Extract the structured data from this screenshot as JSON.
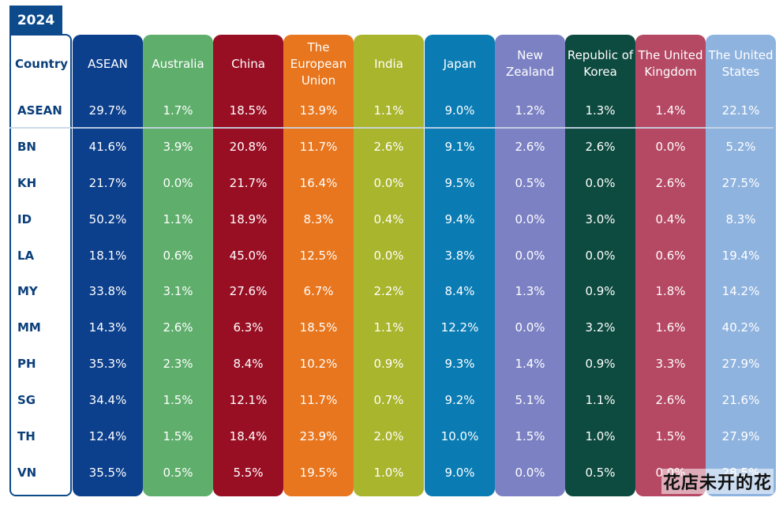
{
  "year": "2024",
  "country_header": "Country",
  "watermark": "花店未开的花",
  "colors": [
    "#0c3f8c",
    "#5fae6c",
    "#980f24",
    "#e8761e",
    "#a9b52c",
    "#0a7cb3",
    "#7b81c3",
    "#0d4a3f",
    "#b54863",
    "#8fb3df"
  ],
  "chart_data": {
    "type": "table",
    "columns": [
      "ASEAN",
      "Australia",
      "China",
      "The European Union",
      "India",
      "Japan",
      "New Zealand",
      "Republic of Korea",
      "The United Kingdom",
      "The United States"
    ],
    "column_lines": [
      [
        "ASEAN"
      ],
      [
        "Australia"
      ],
      [
        "China"
      ],
      [
        "The",
        "European",
        "Union"
      ],
      [
        "India"
      ],
      [
        "Japan"
      ],
      [
        "New",
        "Zealand"
      ],
      [
        "Republic of",
        "Korea"
      ],
      [
        "The United",
        "Kingdom"
      ],
      [
        "The United",
        "States"
      ]
    ],
    "rows": [
      {
        "country": "ASEAN",
        "values": [
          "29.7%",
          "1.7%",
          "18.5%",
          "13.9%",
          "1.1%",
          "9.0%",
          "1.2%",
          "1.3%",
          "1.4%",
          "22.1%"
        ]
      },
      {
        "country": "BN",
        "values": [
          "41.6%",
          "3.9%",
          "20.8%",
          "11.7%",
          "2.6%",
          "9.1%",
          "2.6%",
          "2.6%",
          "0.0%",
          "5.2%"
        ]
      },
      {
        "country": "KH",
        "values": [
          "21.7%",
          "0.0%",
          "21.7%",
          "16.4%",
          "0.0%",
          "9.5%",
          "0.5%",
          "0.0%",
          "2.6%",
          "27.5%"
        ]
      },
      {
        "country": "ID",
        "values": [
          "50.2%",
          "1.1%",
          "18.9%",
          "8.3%",
          "0.4%",
          "9.4%",
          "0.0%",
          "3.0%",
          "0.4%",
          "8.3%"
        ]
      },
      {
        "country": "LA",
        "values": [
          "18.1%",
          "0.6%",
          "45.0%",
          "12.5%",
          "0.0%",
          "3.8%",
          "0.0%",
          "0.0%",
          "0.6%",
          "19.4%"
        ]
      },
      {
        "country": "MY",
        "values": [
          "33.8%",
          "3.1%",
          "27.6%",
          "6.7%",
          "2.2%",
          "8.4%",
          "1.3%",
          "0.9%",
          "1.8%",
          "14.2%"
        ]
      },
      {
        "country": "MM",
        "values": [
          "14.3%",
          "2.6%",
          "6.3%",
          "18.5%",
          "1.1%",
          "12.2%",
          "0.0%",
          "3.2%",
          "1.6%",
          "40.2%"
        ]
      },
      {
        "country": "PH",
        "values": [
          "35.3%",
          "2.3%",
          "8.4%",
          "10.2%",
          "0.9%",
          "9.3%",
          "1.4%",
          "0.9%",
          "3.3%",
          "27.9%"
        ]
      },
      {
        "country": "SG",
        "values": [
          "34.4%",
          "1.5%",
          "12.1%",
          "11.7%",
          "0.7%",
          "9.2%",
          "5.1%",
          "1.1%",
          "2.6%",
          "21.6%"
        ]
      },
      {
        "country": "TH",
        "values": [
          "12.4%",
          "1.5%",
          "18.4%",
          "23.9%",
          "2.0%",
          "10.0%",
          "1.5%",
          "1.0%",
          "1.5%",
          "27.9%"
        ]
      },
      {
        "country": "VN",
        "values": [
          "35.5%",
          "0.5%",
          "5.5%",
          "19.5%",
          "1.0%",
          "9.0%",
          "0.0%",
          "0.5%",
          "0.0%",
          "28.5%"
        ]
      }
    ]
  }
}
